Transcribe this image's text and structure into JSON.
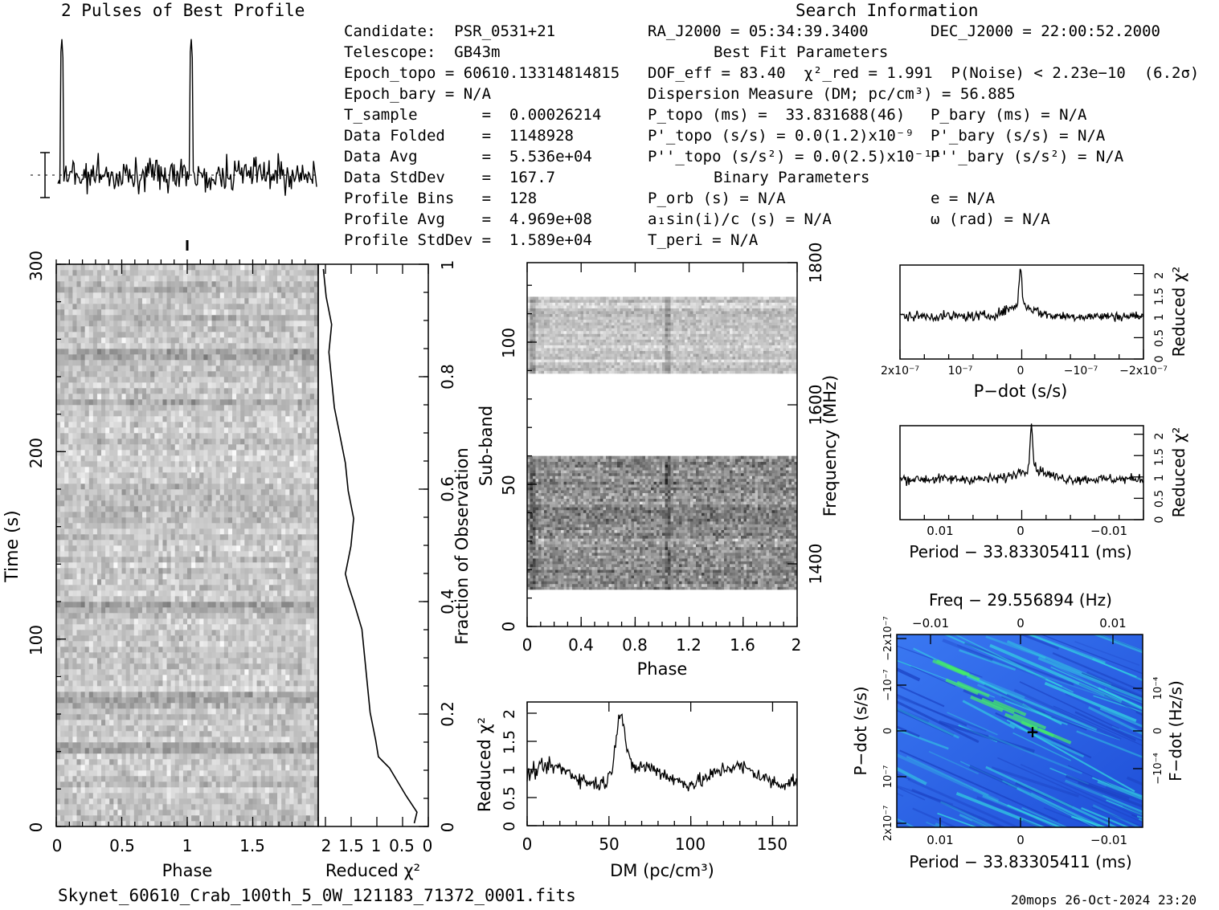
{
  "header": {
    "profile_title": "2 Pulses of Best Profile",
    "search_title": "Search Information",
    "best_fit_title": "Best Fit Parameters",
    "binary_title": "Binary Parameters"
  },
  "info_left": [
    "Candidate:  PSR_0531+21",
    "Telescope:  GB43m",
    "Epoch_topo = 60610.13314814815",
    "Epoch_bary = N/A",
    "T_sample       =  0.00026214",
    "Data Folded    =  1148928",
    "Data Avg       =  5.536e+04",
    "Data StdDev    =  167.7",
    "Profile Bins   =  128",
    "Profile Avg    =  4.969e+08",
    "Profile StdDev =  1.589e+04"
  ],
  "info_mid": {
    "ra": "RA_J2000 = 05:34:39.3400",
    "dof": "DOF_eff = 83.40  χ²_red = 1.991  P(Noise) < 2.23e−10  (6.2σ)",
    "dm": "Dispersion Measure (DM; pc/cm³) = 56.885",
    "p_topo": "P_topo (ms) =  33.831688(46)",
    "pd_topo": "P'_topo (s/s) = 0.0(1.2)x10⁻⁹",
    "pdd_topo": "P''_topo (s/s²) = 0.0(2.5)x10⁻¹¹",
    "p_orb": "P_orb (s) = N/A",
    "a1sini": "a₁sin(i)/c (s) = N/A",
    "t_peri": "T_peri = N/A"
  },
  "info_right": {
    "dec": "DEC_J2000 = 22:00:52.2000",
    "p_bary": "P_bary (ms) = N/A",
    "pd_bary": "P'_bary (s/s) = N/A",
    "pdd_bary": "P''_bary (s/s²) = N/A",
    "e": "e = N/A",
    "omega": "ω (rad) = N/A"
  },
  "footer": {
    "filename": "Skynet_60610_Crab_100th_5_0W_121183_71372_0001.fits",
    "stamp": "20mops 26-Oct-2024 23:20"
  },
  "colors": {
    "ink": "#000000",
    "ppdot_bg": "#2a5ff0",
    "ppdot_hi": "#33e0e0",
    "ppdot_peak": "#44ee66"
  },
  "chart_data": [
    {
      "type": "line",
      "name": "profile",
      "title": "2 Pulses of Best Profile",
      "xlim": [
        0,
        2
      ],
      "peaks_phase": [
        0.03,
        1.03
      ],
      "grid": false
    },
    {
      "type": "heatmap",
      "name": "time-phase",
      "xlabel": "Phase",
      "ylabel": "Time (s)",
      "xlim": [
        0,
        2
      ],
      "ylim": [
        0,
        300
      ],
      "x_ticks": [
        "0",
        "0.5",
        "1",
        "1.5"
      ],
      "y_ticks": [
        "0",
        "100",
        "200",
        "300"
      ],
      "right_axis_label": "Fraction of Observation",
      "right_ticks": [
        "0",
        "0.2",
        "0.4",
        "0.6",
        "0.8",
        "1"
      ]
    },
    {
      "type": "line",
      "name": "chi2-vs-time",
      "xlabel": "Reduced χ²",
      "x_ticks": [
        "2",
        "1.5",
        "1",
        "0.5",
        "0"
      ],
      "xlim": [
        2,
        0
      ],
      "fraction": [
        0,
        0.02,
        0.05,
        0.1,
        0.12,
        0.15,
        0.2,
        0.25,
        0.3,
        0.35,
        0.4,
        0.43,
        0.45,
        0.5,
        0.55,
        0.6,
        0.65,
        0.7,
        0.75,
        0.8,
        0.85,
        0.9,
        0.95,
        1.0
      ],
      "chi2": [
        0.3,
        0.25,
        0.45,
        0.75,
        0.95,
        1.0,
        1.1,
        1.15,
        1.2,
        1.25,
        1.4,
        1.5,
        1.55,
        1.45,
        1.4,
        1.5,
        1.55,
        1.65,
        1.75,
        1.8,
        1.85,
        1.8,
        1.9,
        1.95
      ]
    },
    {
      "type": "heatmap",
      "name": "subband-phase",
      "xlabel": "Phase",
      "ylabel": "Sub-band",
      "xlim": [
        0,
        2
      ],
      "ylim": [
        0,
        128
      ],
      "x_ticks": [
        "0",
        "0.4",
        "0.8",
        "1.2",
        "1.6",
        "2"
      ],
      "y_ticks": [
        "0",
        "50",
        "100"
      ],
      "right_axis_label": "Frequency (MHz)",
      "right_ticks": [
        "1400",
        "1600",
        "1800"
      ],
      "bands_with_data": [
        [
          13,
          60
        ],
        [
          89,
          116
        ]
      ]
    },
    {
      "type": "line",
      "name": "chi2-vs-dm",
      "xlabel": "DM (pc/cm³)",
      "ylabel": "Reduced χ²",
      "xlim": [
        0,
        165
      ],
      "ylim": [
        0,
        2.2
      ],
      "x_ticks": [
        "0",
        "50",
        "100",
        "150"
      ],
      "y_ticks": [
        "0",
        "0.5",
        "1",
        "1.5",
        "2"
      ],
      "peak_dm": 56.9,
      "peak_chi2": 2.0,
      "baseline": 0.9
    },
    {
      "type": "line",
      "name": "chi2-vs-pdot",
      "xlabel": "P−dot (s/s)",
      "ylabel": "Reduced χ²",
      "x_ticks": [
        "2x10⁻⁷",
        "10⁻⁷",
        "0",
        "−10⁻⁷",
        "−2x10⁻⁷"
      ],
      "y_ticks": [
        "0",
        "0.5",
        "1",
        "1.5",
        "2"
      ],
      "ylim": [
        0,
        2.2
      ],
      "peak_chi2": 1.9,
      "baseline": 1.0
    },
    {
      "type": "line",
      "name": "chi2-vs-period",
      "xlabel": "Period − 33.83305411 (ms)",
      "ylabel": "Reduced χ²",
      "x_ticks": [
        "0.01",
        "0",
        "−0.01"
      ],
      "y_ticks": [
        "0",
        "0.5",
        "1",
        "1.5",
        "2"
      ],
      "ylim": [
        0,
        2.2
      ],
      "peak_chi2": 1.95,
      "baseline": 0.95
    },
    {
      "type": "heatmap",
      "name": "p-pdot",
      "title": "Freq − 29.556894 (Hz)",
      "xlabel": "Period − 33.83305411 (ms)",
      "ylabel": "P−dot (s/s)",
      "right_axis_label": "F−dot (Hz/s)",
      "x_ticks": [
        "0.01",
        "0",
        "−0.01"
      ],
      "top_ticks": [
        "−0.01",
        "0",
        "0.01"
      ],
      "y_ticks": [
        "2x10⁻⁷",
        "10⁻⁷",
        "0",
        "−10⁻⁷",
        "−2x10⁻⁷"
      ],
      "right_ticks": [
        "−10⁻⁴",
        "0",
        "10⁻⁴"
      ]
    }
  ]
}
